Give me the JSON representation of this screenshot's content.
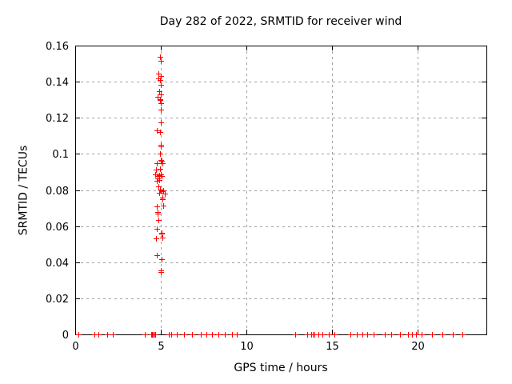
{
  "chart_data": {
    "type": "scatter",
    "title": "Day 282 of 2022, SRMTID for receiver wind",
    "xlabel": "GPS time / hours",
    "ylabel": "SRMTID / TECUs",
    "xlim": [
      0,
      24
    ],
    "ylim": [
      0,
      0.16
    ],
    "grid": true,
    "legend": "none",
    "xticks": {
      "values": [
        0,
        5,
        10,
        15,
        20
      ],
      "labels": [
        "0",
        "5",
        "10",
        "15",
        "20"
      ]
    },
    "yticks": {
      "values": [
        0,
        0.02,
        0.04,
        0.06,
        0.08,
        0.1,
        0.12,
        0.14,
        0.16
      ],
      "labels": [
        "0",
        "0.02",
        "0.04",
        "0.06",
        "0.08",
        "0.1",
        "0.12",
        "0.14",
        "0.16"
      ]
    },
    "colors": {
      "marker": "#ff0000",
      "axis": "#000000",
      "grid": "#a0a0a0",
      "background": "#ffffff",
      "text": "#000000"
    },
    "marker": "plus",
    "series": [
      {
        "name": "SRMTID",
        "points": [
          [
            4.94,
            0.1538
          ],
          [
            4.99,
            0.1517
          ],
          [
            4.86,
            0.1443
          ],
          [
            4.99,
            0.1433
          ],
          [
            4.86,
            0.1418
          ],
          [
            4.94,
            0.1411
          ],
          [
            4.99,
            0.1381
          ],
          [
            4.91,
            0.1347
          ],
          [
            4.99,
            0.133
          ],
          [
            4.79,
            0.1315
          ],
          [
            4.94,
            0.1305
          ],
          [
            4.97,
            0.1298
          ],
          [
            4.99,
            0.1281
          ],
          [
            4.99,
            0.1246
          ],
          [
            4.99,
            0.1175
          ],
          [
            4.75,
            0.113
          ],
          [
            4.94,
            0.1123
          ],
          [
            4.98,
            0.1049
          ],
          [
            5.0,
            0.1042
          ],
          [
            4.97,
            0.1
          ],
          [
            5.01,
            0.0968
          ],
          [
            5.06,
            0.096
          ],
          [
            4.75,
            0.0949
          ],
          [
            5.09,
            0.0949
          ],
          [
            4.94,
            0.0916
          ],
          [
            4.71,
            0.0911
          ],
          [
            4.66,
            0.0887
          ],
          [
            4.79,
            0.0879
          ],
          [
            4.91,
            0.0884
          ],
          [
            4.99,
            0.0887
          ],
          [
            5.06,
            0.0879
          ],
          [
            4.82,
            0.0865
          ],
          [
            4.91,
            0.0857
          ],
          [
            4.76,
            0.0853
          ],
          [
            4.86,
            0.082
          ],
          [
            4.94,
            0.0803
          ],
          [
            5.13,
            0.08
          ],
          [
            5.06,
            0.0794
          ],
          [
            4.91,
            0.0783
          ],
          [
            5.21,
            0.0779
          ],
          [
            5.09,
            0.0756
          ],
          [
            5.11,
            0.075
          ],
          [
            5.13,
            0.0712
          ],
          [
            4.74,
            0.0709
          ],
          [
            4.79,
            0.0676
          ],
          [
            4.81,
            0.067
          ],
          [
            4.86,
            0.0634
          ],
          [
            4.77,
            0.0585
          ],
          [
            5.03,
            0.0563
          ],
          [
            5.05,
            0.0557
          ],
          [
            5.1,
            0.0537
          ],
          [
            4.71,
            0.0534
          ],
          [
            4.76,
            0.0438
          ],
          [
            5.03,
            0.0418
          ],
          [
            4.99,
            0.0356
          ],
          [
            5.0,
            0.0344
          ],
          [
            0.19,
            0
          ],
          [
            1.1,
            0
          ],
          [
            1.37,
            0
          ],
          [
            1.86,
            0
          ],
          [
            2.18,
            0
          ],
          [
            4.05,
            0
          ],
          [
            4.45,
            0
          ],
          [
            4.5,
            0
          ],
          [
            4.55,
            0
          ],
          [
            4.6,
            0
          ],
          [
            4.65,
            0
          ],
          [
            5.45,
            0
          ],
          [
            5.58,
            0
          ],
          [
            5.95,
            0
          ],
          [
            6.34,
            0
          ],
          [
            6.84,
            0
          ],
          [
            7.31,
            0
          ],
          [
            7.66,
            0
          ],
          [
            7.97,
            0
          ],
          [
            8.36,
            0
          ],
          [
            8.75,
            0
          ],
          [
            9.14,
            0
          ],
          [
            9.42,
            0
          ],
          [
            12.84,
            0
          ],
          [
            13.52,
            0
          ],
          [
            13.77,
            0
          ],
          [
            13.88,
            0
          ],
          [
            13.94,
            0
          ],
          [
            14.19,
            0
          ],
          [
            14.45,
            0
          ],
          [
            14.81,
            0
          ],
          [
            15.15,
            0
          ],
          [
            16.08,
            0
          ],
          [
            16.44,
            0
          ],
          [
            16.75,
            0
          ],
          [
            17.06,
            0
          ],
          [
            17.4,
            0
          ],
          [
            18.07,
            0
          ],
          [
            18.46,
            0
          ],
          [
            18.96,
            0
          ],
          [
            19.43,
            0
          ],
          [
            19.66,
            0
          ],
          [
            19.89,
            0
          ],
          [
            20.22,
            0
          ],
          [
            20.82,
            0
          ],
          [
            21.44,
            0
          ],
          [
            22.04,
            0
          ],
          [
            22.61,
            0
          ]
        ]
      }
    ]
  }
}
